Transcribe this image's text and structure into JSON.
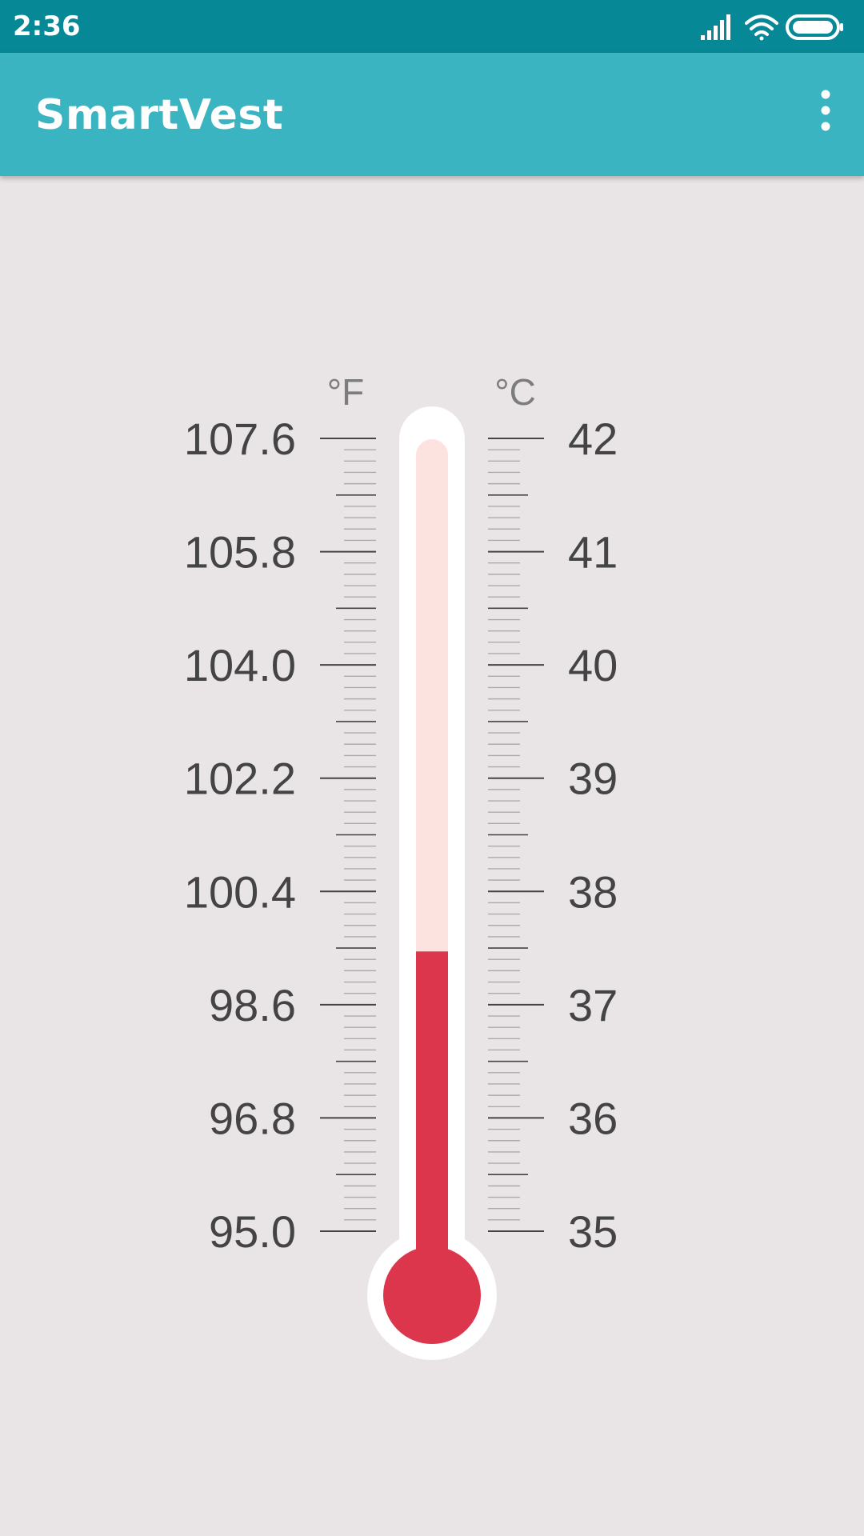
{
  "status_bar": {
    "time": "2:36",
    "icons": [
      "signal-icon",
      "wifi-icon",
      "battery-icon"
    ]
  },
  "app_bar": {
    "title": "SmartVest",
    "overflow_icon": "more-vert-icon"
  },
  "thermometer": {
    "fahrenheit_unit": "°F",
    "celsius_unit": "°C",
    "fahrenheit_labels": [
      "107.6",
      "105.8",
      "104.0",
      "102.2",
      "100.4",
      "98.6",
      "96.8",
      "95.0"
    ],
    "celsius_labels": [
      "42",
      "41",
      "40",
      "39",
      "38",
      "37",
      "36",
      "35"
    ],
    "celsius_min": 35,
    "celsius_max": 42,
    "current_celsius": 37.47,
    "colors": {
      "mercury": "#db364c",
      "tube_empty": "#fde3df",
      "tube_outline": "#ffffff",
      "major_tick": "#444444",
      "minor_tick": "#aaaaaa"
    }
  },
  "colors": {
    "status_bar": "#068896",
    "app_bar": "#3bb4c1",
    "background": "#e9e5e6"
  }
}
